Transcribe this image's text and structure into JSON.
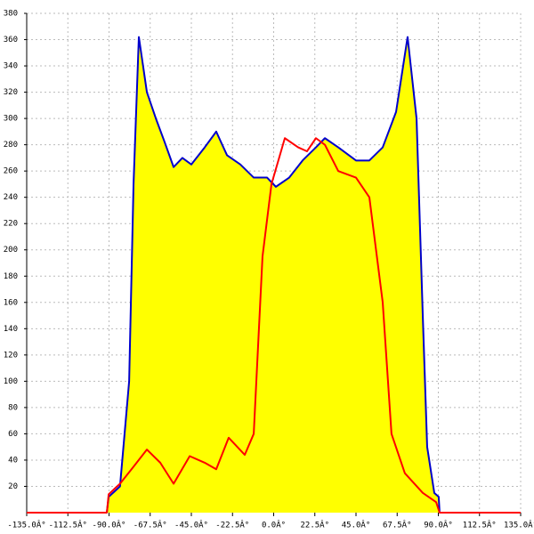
{
  "chart_data": {
    "type": "area-line",
    "xlim": [
      -135,
      135
    ],
    "ylim": [
      0,
      380
    ],
    "xticks": [
      {
        "value": -135,
        "label": "-135.0Â°"
      },
      {
        "value": -112.5,
        "label": "-112.5Â°"
      },
      {
        "value": -90,
        "label": "-90.0Â°"
      },
      {
        "value": -67.5,
        "label": "-67.5Â°"
      },
      {
        "value": -45,
        "label": "-45.0Â°"
      },
      {
        "value": -22.5,
        "label": "-22.5Â°"
      },
      {
        "value": 0,
        "label": "0.0Â°"
      },
      {
        "value": 22.5,
        "label": "22.5Â°"
      },
      {
        "value": 45,
        "label": "45.0Â°"
      },
      {
        "value": 67.5,
        "label": "67.5Â°"
      },
      {
        "value": 90,
        "label": "90.0Â°"
      },
      {
        "value": 112.5,
        "label": "112.5Â°"
      },
      {
        "value": 135,
        "label": "135.0Â°"
      }
    ],
    "yticks": [
      20,
      40,
      60,
      80,
      100,
      120,
      140,
      160,
      180,
      200,
      220,
      240,
      260,
      280,
      300,
      320,
      340,
      360,
      380
    ],
    "grid": true,
    "series": [
      {
        "color": "#0000cc",
        "fill": "#ffff00",
        "x": [
          -135,
          -91.2,
          -90.2,
          -84,
          -79,
          -76.6,
          -73.7,
          -69.3,
          -64.4,
          -59.6,
          -54.7,
          -49.9,
          -45,
          -37.7,
          -31.4,
          -25.5,
          -18.2,
          -10.9,
          -3.6,
          1.2,
          8.5,
          15.8,
          23.1,
          28,
          35.3,
          45,
          52.3,
          59.6,
          66.9,
          73.2,
          78.1,
          81.5,
          83.9,
          87.8,
          90.2,
          90.7,
          135
        ],
        "values": [
          0,
          0,
          12,
          20,
          100,
          250,
          362,
          320,
          300,
          282,
          263,
          270,
          265,
          278,
          290,
          272,
          265,
          255,
          255,
          248,
          255,
          268,
          278,
          285,
          278,
          268,
          268,
          278,
          305,
          362,
          300,
          150,
          50,
          15,
          12,
          0,
          0
        ]
      },
      {
        "color": "#ff0000",
        "x": [
          -135,
          -91.2,
          -90.2,
          -84,
          -76.6,
          -69.3,
          -62,
          -54.7,
          -45.9,
          -37.7,
          -31.4,
          -24.6,
          -15.8,
          -10.9,
          -6.1,
          -1.2,
          6.1,
          13.4,
          18.2,
          23.1,
          28,
          35.3,
          45,
          52.3,
          59.6,
          64.4,
          71.7,
          81.5,
          88.8,
          90.7,
          135
        ],
        "values": [
          0,
          0,
          14,
          22,
          35,
          48,
          38,
          22,
          43,
          38,
          33,
          57,
          44,
          60,
          195,
          250,
          285,
          278,
          275,
          285,
          280,
          260,
          255,
          240,
          160,
          60,
          30,
          15,
          8,
          0,
          0
        ]
      }
    ]
  }
}
